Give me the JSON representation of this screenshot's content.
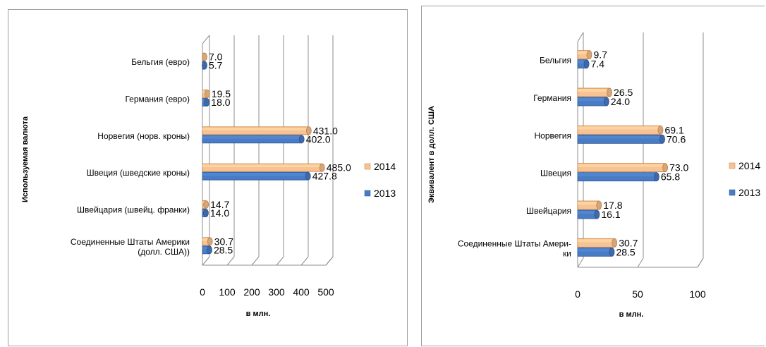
{
  "colors": {
    "s2014_fill": "#f7c394",
    "s2014_edge": "#c77f3d",
    "s2013_fill": "#4a7cc4",
    "s2013_edge": "#2a5595",
    "grid": "#8c8c8c"
  },
  "chart_data": [
    {
      "type": "bar",
      "orientation": "horizontal",
      "title": "",
      "xlabel": "в млн.",
      "ylabel": "Используемая валюта",
      "xlim": [
        0,
        500
      ],
      "xticks": [
        "0",
        "100",
        "200",
        "300",
        "400",
        "500"
      ],
      "legend_position": "right",
      "categories": [
        "Бельгия (евро)",
        "Германия (евро)",
        "Норвегия (норв. кроны)",
        "Швеция (шведские кроны)",
        "Швейцария (швейц. франки)",
        [
          "Соединенные Штаты Америки",
          "(долл. США))"
        ]
      ],
      "series": [
        {
          "name": "2014",
          "values": [
            7.0,
            19.5,
            431.0,
            485.0,
            14.7,
            30.7
          ],
          "labels": [
            "7.0",
            "19.5",
            "431.0",
            "485.0",
            "14.7",
            "30.7"
          ]
        },
        {
          "name": "2013",
          "values": [
            5.7,
            18.0,
            402.0,
            427.8,
            14.0,
            28.5
          ],
          "labels": [
            "5.7",
            "18.0",
            "402.0",
            "427.8",
            "14.0",
            "28.5"
          ]
        }
      ]
    },
    {
      "type": "bar",
      "orientation": "horizontal",
      "title": "",
      "xlabel": "в млн.",
      "ylabel": "Эквивалент в долл. США",
      "xlim": [
        0,
        100
      ],
      "xticks": [
        "0",
        "50",
        "100"
      ],
      "legend_position": "right",
      "categories": [
        "Бельгия",
        "Германия",
        "Норвегия",
        "Швеция",
        "Швейцария",
        [
          "Соединенные Штаты Амери-",
          "ки"
        ]
      ],
      "series": [
        {
          "name": "2014",
          "values": [
            9.7,
            26.5,
            69.1,
            73.0,
            17.8,
            30.7
          ],
          "labels": [
            "9.7",
            "26.5",
            "69.1",
            "73.0",
            "17.8",
            "30.7"
          ]
        },
        {
          "name": "2013",
          "values": [
            7.4,
            24.0,
            70.6,
            65.8,
            16.1,
            28.5
          ],
          "labels": [
            "7.4",
            "24.0",
            "70.6",
            "65.8",
            "16.1",
            "28.5"
          ]
        }
      ]
    }
  ]
}
